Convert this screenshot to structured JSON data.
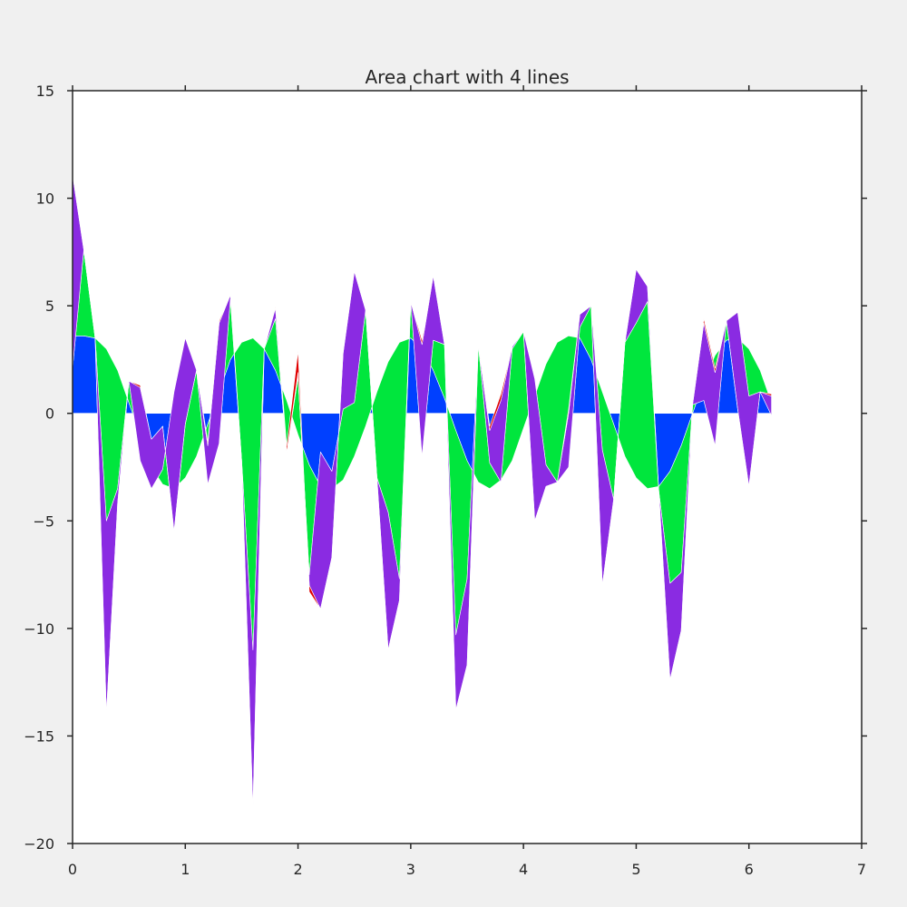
{
  "chart_data": {
    "type": "area",
    "stacked": true,
    "title": "Area chart with 4 lines",
    "xlabel": "",
    "ylabel": "",
    "xlim": [
      0,
      7
    ],
    "ylim": [
      -20,
      15
    ],
    "grid": false,
    "x_ticks": [
      0,
      1,
      2,
      3,
      4,
      5,
      6,
      7
    ],
    "x_tick_labels": [
      "0",
      "1",
      "2",
      "3",
      "4",
      "5",
      "6",
      "7"
    ],
    "y_ticks": [
      15,
      10,
      5,
      0,
      -5,
      -10,
      -15,
      -20
    ],
    "y_tick_labels": [
      "15",
      "10",
      "5",
      "0",
      "−5",
      "−10",
      "−15",
      "−20"
    ],
    "x": [
      0.0,
      0.1,
      0.2,
      0.3,
      0.4,
      0.5,
      0.6,
      0.7,
      0.8,
      0.9,
      1.0,
      1.1,
      1.2,
      1.3,
      1.4,
      1.5,
      1.6,
      1.7,
      1.8,
      1.9,
      2.0,
      2.1,
      2.2,
      2.3,
      2.4,
      2.5,
      2.6,
      2.7,
      2.8,
      2.9,
      3.0,
      3.1,
      3.2,
      3.3,
      3.4,
      3.5,
      3.6,
      3.7,
      3.8,
      3.9,
      4.0,
      4.1,
      4.2,
      4.3,
      4.4,
      4.5,
      4.6,
      4.7,
      4.8,
      4.9,
      5.0,
      5.1,
      5.2,
      5.3,
      5.4,
      5.5,
      5.6,
      5.7,
      5.8,
      5.9,
      6.0,
      6.1,
      6.2
    ],
    "series": [
      {
        "color": "#0040ff",
        "values": [
          3.6,
          3.6,
          3.5,
          3.0,
          2.0,
          0.5,
          -1.0,
          -2.5,
          -3.3,
          -3.5,
          -3.0,
          -2.0,
          -0.5,
          1.0,
          2.5,
          3.3,
          3.5,
          3.0,
          2.0,
          0.6,
          -1.0,
          -2.4,
          -3.4,
          -3.5,
          -3.1,
          -2.0,
          -0.6,
          1.0,
          2.4,
          3.3,
          3.5,
          3.0,
          2.0,
          0.7,
          -0.8,
          -2.2,
          -3.2,
          -3.5,
          -3.1,
          -2.2,
          -0.7,
          0.8,
          2.3,
          3.3,
          3.6,
          3.5,
          2.5,
          1.0,
          -0.5,
          -2.0,
          -3.0,
          -3.5,
          -3.4,
          -2.7,
          -1.5,
          0.0,
          1.5,
          2.7,
          3.4,
          3.5,
          3.0,
          2.0,
          0.5
        ]
      },
      {
        "color": "#00e63d",
        "values": [
          -1.5,
          4.0,
          0.0,
          -8.0,
          -5.5,
          1.0,
          -1.2,
          -1.0,
          0.7,
          4.5,
          6.5,
          4.0,
          -2.8,
          -2.4,
          2.8,
          -5.5,
          -14.5,
          0.0,
          2.4,
          -2.4,
          2.7,
          -5.1,
          1.6,
          0.8,
          3.3,
          2.5,
          5.4,
          -4.0,
          -7.0,
          -11.0,
          1.7,
          -5.0,
          1.4,
          2.5,
          -9.5,
          -5.5,
          6.4,
          1.2,
          -0.1,
          5.2,
          4.5,
          0.8,
          -4.7,
          -6.5,
          -6.1,
          0.5,
          2.5,
          -2.7,
          -3.5,
          5.3,
          7.2,
          8.7,
          -0.2,
          -5.2,
          -5.9,
          0.4,
          -0.9,
          -4.2,
          0.9,
          1.2,
          -2.2,
          -1.0,
          -0.6
        ]
      },
      {
        "color": "#8a2be2",
        "values": [
          9.0,
          0.0,
          0.0,
          -9.0,
          -0.7,
          0.0,
          3.4,
          2.3,
          2.0,
          -6.5,
          -4.0,
          0.0,
          1.8,
          5.6,
          0.2,
          0.0,
          -7.4,
          0.0,
          0.5,
          0.0,
          0.2,
          -0.5,
          -7.3,
          -4.0,
          2.6,
          6.1,
          0.0,
          0.0,
          -6.4,
          -1.0,
          0.0,
          5.2,
          3.0,
          0.0,
          -3.5,
          -4.0,
          0.0,
          1.5,
          3.8,
          0.1,
          0.0,
          -6.6,
          -1.0,
          0.0,
          2.5,
          0.6,
          0.0,
          -6.3,
          0.0,
          0.0,
          2.5,
          0.7,
          0.0,
          -4.5,
          -2.7,
          0.0,
          3.6,
          3.4,
          0.0,
          -4.5,
          -4.2,
          0.0,
          0.9
        ]
      },
      {
        "color": "#e00000",
        "values": [
          0.0,
          0.0,
          0.0,
          0.0,
          0.0,
          0.0,
          0.1,
          0.0,
          0.0,
          0.0,
          0.0,
          0.0,
          0.2,
          0.1,
          0.0,
          0.0,
          0.0,
          0.0,
          0.1,
          0.3,
          1.0,
          -0.3,
          0.0,
          0.0,
          0.0,
          0.0,
          0.0,
          0.0,
          0.0,
          0.0,
          0.0,
          0.2,
          0.0,
          0.0,
          0.0,
          0.0,
          0.0,
          0.2,
          0.3,
          0.0,
          0.0,
          0.0,
          0.0,
          0.0,
          0.2,
          0.0,
          0.0,
          0.0,
          0.0,
          0.0,
          0.0,
          0.0,
          0.0,
          0.0,
          0.0,
          0.0,
          0.2,
          0.2,
          0.0,
          0.0,
          0.0,
          0.0,
          0.1
        ]
      }
    ]
  }
}
